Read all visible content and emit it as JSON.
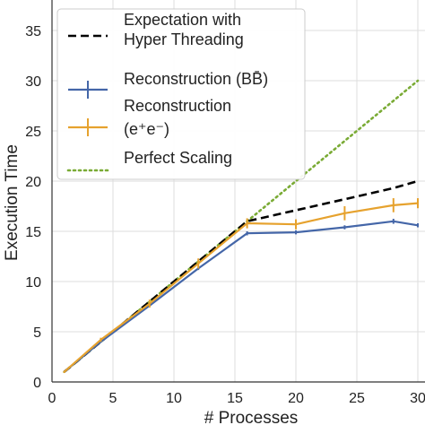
{
  "chart_data": {
    "type": "line",
    "xlabel": "# Processes",
    "ylabel": "Execution Time",
    "xlim": [
      0,
      30
    ],
    "ylim": [
      0,
      38
    ],
    "xticks": [
      0,
      5,
      10,
      15,
      20,
      25,
      30
    ],
    "yticks": [
      0,
      5,
      10,
      15,
      20,
      25,
      30,
      35
    ],
    "grid": true,
    "legend_position": "top-left",
    "series": [
      {
        "name": "Expectation with Hyper Threading",
        "legend_lines": [
          "Expectation with",
          "Hyper Threading"
        ],
        "style": "dashed",
        "color": "#000000",
        "x": [
          1,
          2,
          4,
          6,
          8,
          10,
          12,
          14,
          16,
          20,
          24,
          28,
          30
        ],
        "y": [
          1,
          2,
          4,
          6,
          8,
          10,
          12,
          14,
          16,
          17.1,
          18.2,
          19.3,
          20.0
        ]
      },
      {
        "name": "Reconstruction (BB̄)",
        "legend_lines": [
          "Reconstruction (BB̄)"
        ],
        "style": "solid",
        "color": "#4466a8",
        "x": [
          1,
          4,
          8,
          12,
          16,
          20,
          24,
          28,
          30
        ],
        "y": [
          1,
          4,
          7.6,
          11.3,
          14.8,
          14.9,
          15.4,
          16.0,
          15.6
        ],
        "err": [
          0.05,
          0.1,
          0.1,
          0.15,
          0.2,
          0.2,
          0.2,
          0.25,
          0.2
        ]
      },
      {
        "name": "Reconstruction (e⁺e⁻)",
        "legend_lines": [
          "Reconstruction",
          "(e⁺e⁻)"
        ],
        "style": "solid",
        "color": "#e6a22e",
        "x": [
          1,
          4,
          8,
          12,
          16,
          20,
          24,
          28,
          30
        ],
        "y": [
          1,
          4.2,
          7.8,
          11.8,
          15.8,
          15.7,
          16.8,
          17.6,
          17.8
        ],
        "err": [
          0.1,
          0.2,
          0.4,
          0.5,
          0.5,
          0.5,
          0.7,
          0.7,
          0.5
        ]
      },
      {
        "name": "Perfect Scaling",
        "legend_lines": [
          "Perfect Scaling"
        ],
        "style": "dotted",
        "color": "#7aab35",
        "x": [
          1,
          30
        ],
        "y": [
          1,
          30
        ]
      }
    ]
  }
}
